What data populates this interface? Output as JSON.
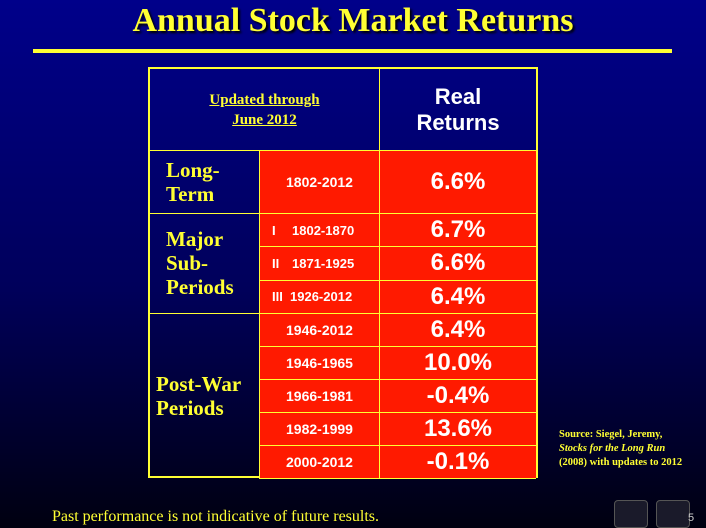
{
  "title": "Annual Stock Market Returns",
  "table": {
    "header_note": [
      "Updated through",
      "June 2012"
    ],
    "column_header": [
      "Real",
      "Returns"
    ],
    "groups": [
      {
        "label": [
          "Long-",
          "Term"
        ],
        "rows": [
          {
            "period": "1802-2012",
            "value": "6.6%"
          }
        ]
      },
      {
        "label": [
          "Major",
          "Sub-",
          "Periods"
        ],
        "rows": [
          {
            "marker": "I",
            "period": "1802-1870",
            "value": "6.7%"
          },
          {
            "marker": "II",
            "period": "1871-1925",
            "value": "6.6%"
          },
          {
            "marker": "III",
            "period": "1926-2012",
            "value": "6.4%"
          }
        ]
      },
      {
        "label": [
          "Post-War",
          "Periods"
        ],
        "rows": [
          {
            "period": "1946-2012",
            "value": "6.4%"
          },
          {
            "period": "1946-1965",
            "value": "10.0%"
          },
          {
            "period": "1966-1981",
            "value": "-0.4%"
          },
          {
            "period": "1982-1999",
            "value": "13.6%"
          },
          {
            "period": "2000-2012",
            "value": "-0.1%"
          }
        ]
      }
    ]
  },
  "source": {
    "lines": [
      "Source: Siegel, Jeremy,",
      "Stocks for the Long Run",
      "(2008) with updates to 2012"
    ]
  },
  "footer": "Past performance is not indicative of future results.",
  "page_number": "5"
}
